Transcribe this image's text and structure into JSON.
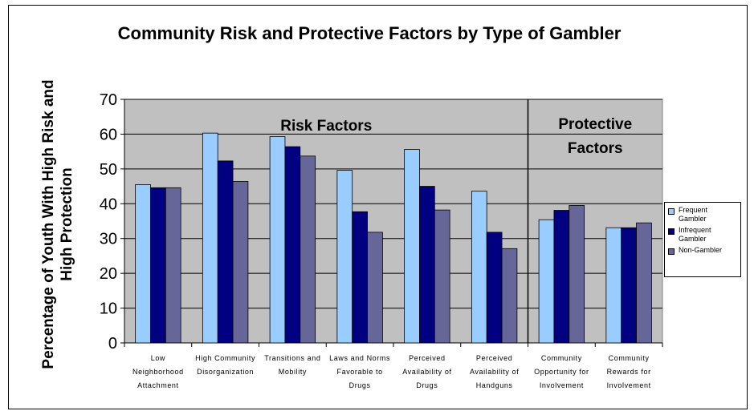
{
  "chart_data": {
    "type": "bar",
    "title": "Community Risk and Protective Factors by Type of Gambler",
    "ylabel": "Percentage of Youth With High Risk and High Protection",
    "xlabel": "",
    "ylim": [
      0,
      70
    ],
    "yticks": [
      0,
      10,
      20,
      30,
      40,
      50,
      60,
      70
    ],
    "grid": true,
    "legend_position": "right",
    "categories": [
      [
        "Low",
        "Neighborhood",
        "Attachment"
      ],
      [
        "High Community",
        "Disorganization"
      ],
      [
        "Transitions and",
        "Mobility"
      ],
      [
        "Laws and Norms",
        "Favorable to",
        "Drugs"
      ],
      [
        "Perceived",
        "Availability of",
        "Drugs"
      ],
      [
        "Perceived",
        "Availability of",
        "Handguns"
      ],
      [
        "Community",
        "Opportunity for",
        "Involvement"
      ],
      [
        "Community",
        "Rewards for",
        "Involvement"
      ]
    ],
    "series": [
      {
        "name": "Frequent Gambler",
        "color": "#99CCFF",
        "values": [
          45.5,
          60.3,
          59.3,
          49.6,
          55.6,
          43.6,
          35.4,
          33.1
        ]
      },
      {
        "name": "Infrequent Gambler",
        "color": "#000080",
        "values": [
          44.6,
          52.3,
          56.4,
          37.7,
          45.0,
          31.8,
          38.1,
          33.1
        ]
      },
      {
        "name": "Non-Gambler",
        "color": "#666699",
        "values": [
          44.6,
          46.4,
          53.7,
          31.8,
          38.2,
          27.1,
          39.5,
          34.5
        ]
      }
    ],
    "annotations": {
      "risk": "Risk Factors",
      "protective_line1": "Protective",
      "protective_line2": "Factors"
    },
    "divider_after_category": 6,
    "plot_background": "#C0C0C0"
  }
}
